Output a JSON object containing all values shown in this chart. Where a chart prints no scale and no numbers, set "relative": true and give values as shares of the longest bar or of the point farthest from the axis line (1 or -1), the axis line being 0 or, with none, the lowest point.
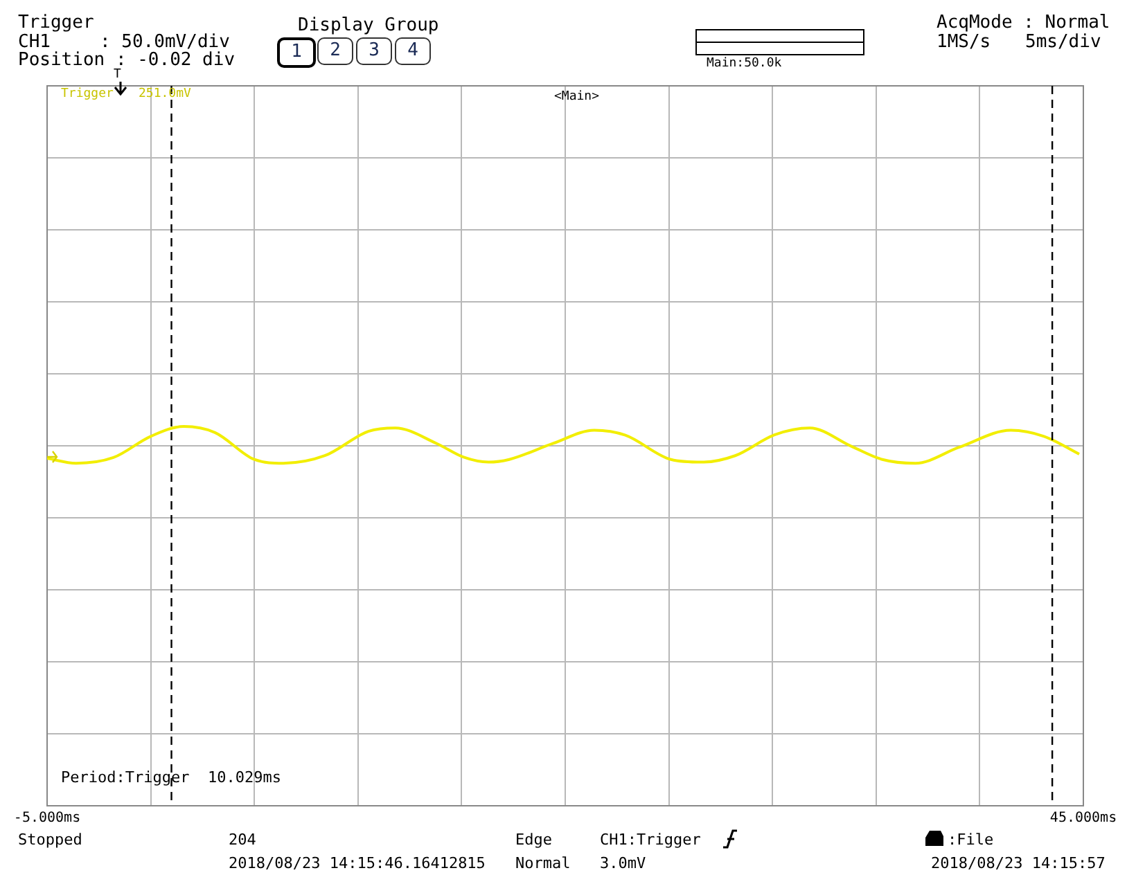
{
  "chart_data": {
    "type": "line",
    "relative": true,
    "tick_labels": "x",
    "grid": true,
    "legend": false,
    "marker": "none",
    "line_style": "solid",
    "xlim": [
      -5,
      45
    ],
    "xticks": [
      {
        "value": -5,
        "label": "-5.000ms"
      },
      {
        "value": 0,
        "label": null
      },
      {
        "value": 5,
        "label": null
      },
      {
        "value": 10,
        "label": null
      },
      {
        "value": 15,
        "label": null
      },
      {
        "value": 20,
        "label": null
      },
      {
        "value": 25,
        "label": null
      },
      {
        "value": 30,
        "label": null
      },
      {
        "value": 35,
        "label": null
      },
      {
        "value": 40,
        "label": null
      },
      {
        "value": 45,
        "label": "45.000ms"
      }
    ],
    "x": [
      -5.0,
      -3.6,
      -1.8,
      0.0,
      1.6,
      3.1,
      5.0,
      6.4,
      8.4,
      10.5,
      11.8,
      13.8,
      15.1,
      16.3,
      17.3,
      19.4,
      21.4,
      22.9,
      25.1,
      26.6,
      28.2,
      30.1,
      31.8,
      33.8,
      35.3,
      36.9,
      39.0,
      41.5,
      43.1,
      44.8
    ],
    "series": [
      {
        "color": "#f2ee00",
        "values": [
          0.916,
          0.903,
          0.918,
          0.974,
          1,
          0.984,
          0.913,
          0.903,
          0.923,
          0.987,
          0.996,
          0.955,
          0.919,
          0.906,
          0.913,
          0.955,
          0.99,
          0.977,
          0.913,
          0.906,
          0.923,
          0.978,
          0.996,
          0.948,
          0.913,
          0.903,
          0.945,
          0.99,
          0.974,
          0.927
        ]
      }
    ],
    "ref_lines": [
      {
        "axis": "x",
        "value": 1.0,
        "color": "#000000",
        "line_style": "dashed"
      },
      {
        "axis": "x",
        "value": 43.5,
        "color": "#000000",
        "line_style": "dashed"
      }
    ],
    "annotations": [
      "Trigger",
      "CH1",
      ": 50.0mV/div",
      "Position : -0.02 div",
      "Display Group",
      "1",
      "2",
      "3",
      "4",
      "Main:50.0k",
      "AcqMode : Normal",
      "1MS/s",
      "5ms/div",
      "Trigger",
      "251.0mV",
      "<Main>",
      "Period:Trigger",
      "10.029ms",
      "Stopped",
      "204",
      "2018/08/23 14:15:46.16412815",
      "Edge",
      "Normal",
      "CH1:Trigger",
      "3.0mV",
      ":File",
      "2018/08/23 14:15:57",
      "T"
    ]
  }
}
